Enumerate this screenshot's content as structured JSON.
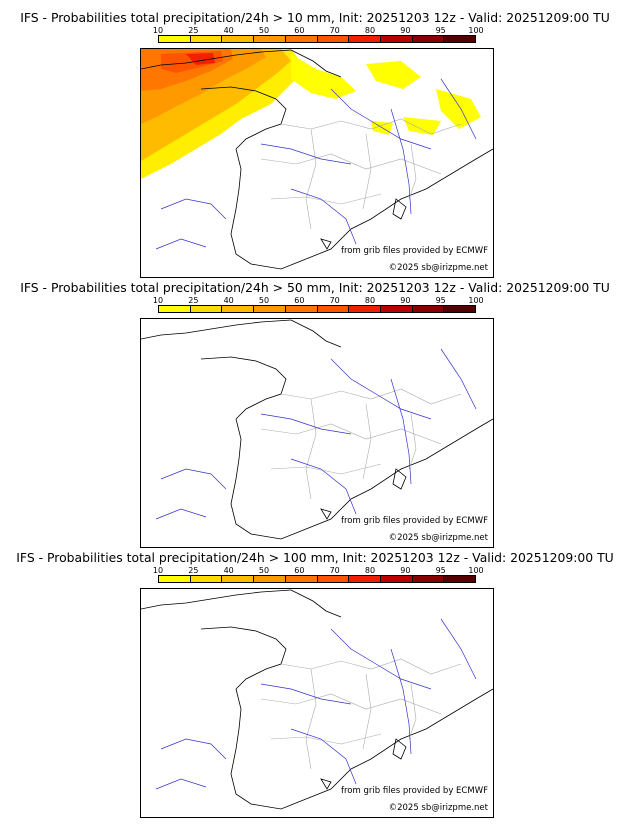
{
  "colorbar": {
    "ticks": [
      "10",
      "25",
      "40",
      "50",
      "60",
      "70",
      "80",
      "90",
      "95",
      "100"
    ],
    "colors": [
      "#ffff00",
      "#ffdd00",
      "#ffbb00",
      "#ff9900",
      "#ff7700",
      "#ff5500",
      "#ee2200",
      "#bb0000",
      "#880000",
      "#550000"
    ]
  },
  "panels": [
    {
      "title": "IFS - Probabilities total precipitation/24h > 10 mm, Init: 20251203 12z - Valid: 20251209:00 TU",
      "source_credit": "from grib files provided by ECMWF",
      "copyright": "©2025 sb@irizpme.net"
    },
    {
      "title": "IFS - Probabilities total precipitation/24h > 50 mm, Init: 20251203 12z - Valid: 20251209:00 TU",
      "source_credit": "from grib files provided by ECMWF",
      "copyright": "©2025 sb@irizpme.net"
    },
    {
      "title": "IFS - Probabilities total precipitation/24h > 100 mm, Init: 20251203 12z - Valid: 20251209:00 TU",
      "source_credit": "from grib files provided by ECMWF",
      "copyright": "©2025 sb@irizpme.net"
    }
  ]
}
